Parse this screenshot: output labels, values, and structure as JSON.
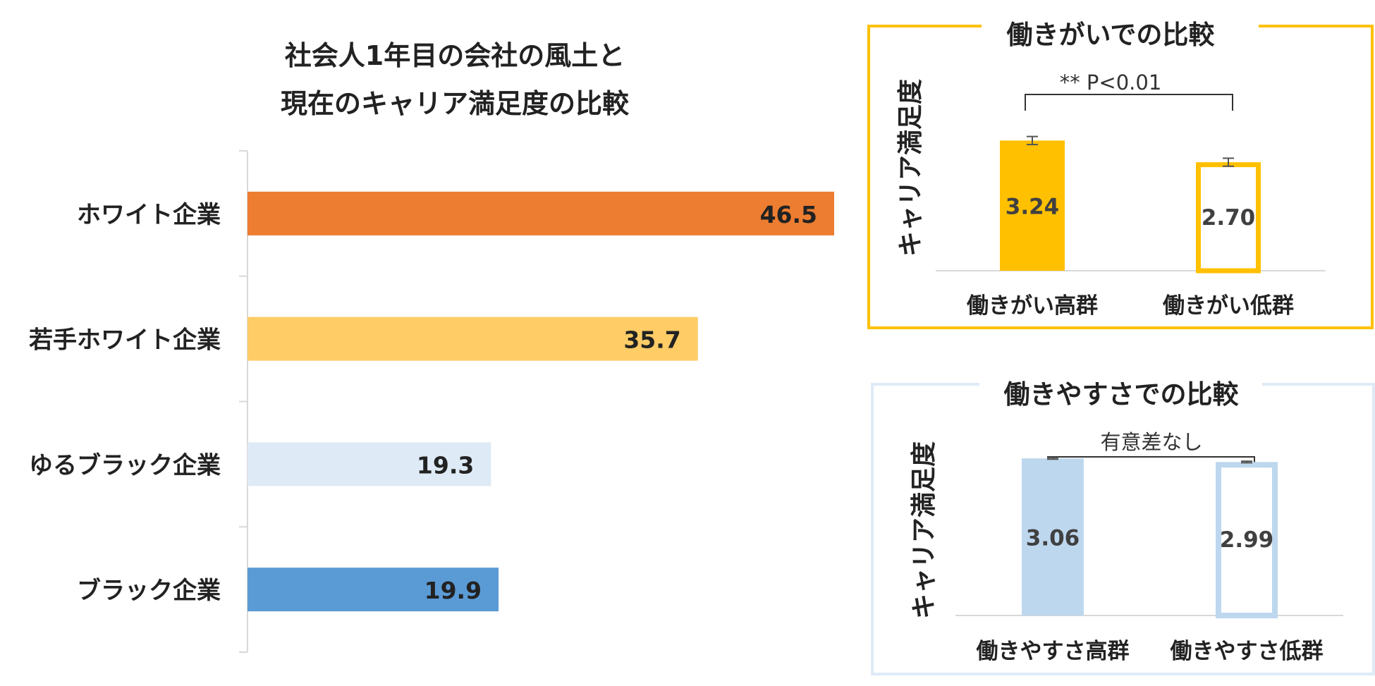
{
  "colors": {
    "white": "#ED7D31",
    "young_white": "#FFCC66",
    "yuru_black": "#DEEAF6",
    "black": "#5B9BD5",
    "panel1_border": "#FFC000",
    "panel1_bar": "#FFC000",
    "panel2_border": "#DEEAF6",
    "panel2_bar": "#BDD7EE",
    "axis": "#D9D9D9",
    "text": "#222222",
    "value_text": "#404040"
  },
  "chart_data": [
    {
      "type": "bar",
      "orientation": "horizontal",
      "title_lines": [
        "社会人1年目の会社の風土と",
        "現在のキャリア満足度の比較"
      ],
      "categories": [
        "ホワイト企業",
        "若手ホワイト企業",
        "ゆるブラック企業",
        "ブラック企業"
      ],
      "values": [
        46.5,
        35.7,
        19.3,
        19.9
      ],
      "value_labels": [
        "46.5",
        "35.7",
        "19.3",
        "19.9"
      ],
      "xlim": [
        0,
        46.5
      ]
    },
    {
      "type": "bar",
      "title": "働きがいでの比較",
      "ylabel": "キャリア満足度",
      "categories": [
        "働きがい高群",
        "働きがい低群"
      ],
      "values": [
        3.24,
        2.7
      ],
      "value_labels": [
        "3.24",
        "2.70"
      ],
      "error": [
        0.1,
        0.1
      ],
      "ylim": [
        0,
        4
      ],
      "significance": "** P<0.01"
    },
    {
      "type": "bar",
      "title": "働きやすさでの比較",
      "ylabel": "キャリア満足度",
      "categories": [
        "働きやすさ高群",
        "働きやすさ低群"
      ],
      "values": [
        3.06,
        2.99
      ],
      "value_labels": [
        "3.06",
        "2.99"
      ],
      "error": [
        0.015,
        0.015
      ],
      "ylim": [
        0,
        3.9
      ],
      "significance": "有意差なし"
    }
  ]
}
